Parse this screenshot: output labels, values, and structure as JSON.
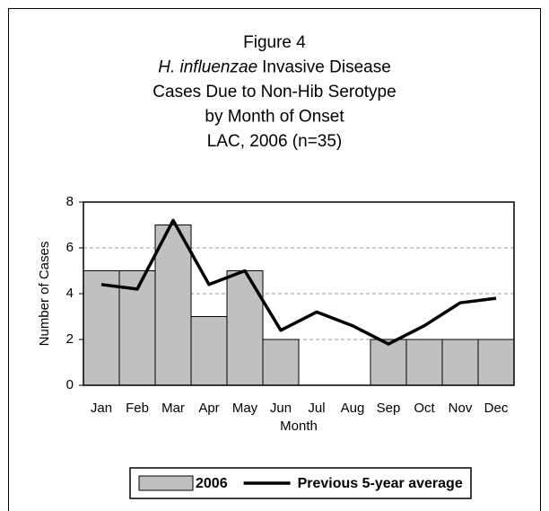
{
  "chart_data": {
    "type": "bar",
    "title": [
      "Figure 4",
      [
        "H. influenzae",
        "Invasive Disease"
      ],
      "Cases Due to Non-Hib Serotype",
      "by Month of Onset",
      "LAC, 2006 (n=35)"
    ],
    "x_label": "Month",
    "y_label": "Number of Cases",
    "categories": [
      "Jan",
      "Feb",
      "Mar",
      "Apr",
      "May",
      "Jun",
      "Jul",
      "Aug",
      "Sep",
      "Oct",
      "Nov",
      "Dec"
    ],
    "series": [
      {
        "name": "2006",
        "type": "bar",
        "color": "#c0c0c0",
        "values": [
          5,
          5,
          7,
          3,
          5,
          2,
          0,
          0,
          2,
          2,
          2,
          2
        ]
      },
      {
        "name": "Previous 5-year average",
        "type": "line",
        "color": "#000000",
        "values": [
          4.4,
          4.2,
          7.2,
          4.4,
          5.0,
          2.4,
          3.2,
          2.6,
          1.8,
          2.6,
          3.6,
          3.8
        ]
      }
    ],
    "ylim": [
      0,
      8
    ],
    "yticks": [
      0,
      2,
      4,
      6,
      8
    ],
    "grid": true,
    "legend": "bottom"
  }
}
